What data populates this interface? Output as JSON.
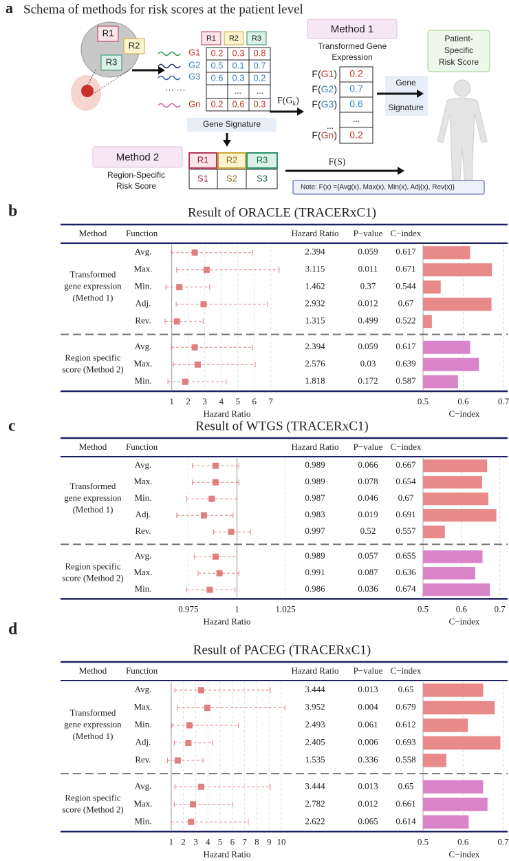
{
  "schema": {
    "label": "a",
    "title": "Schema of methods for risk scores at the patient level",
    "tumor_regions": [
      "R1",
      "R2",
      "R3"
    ],
    "genes": [
      "G1",
      "G2",
      "G3",
      "Gn"
    ],
    "gene_dots": "···  ···",
    "matrix_header": [
      "R1",
      "R2",
      "R3"
    ],
    "matrix": [
      [
        0.2,
        0.3,
        0.8
      ],
      [
        0.5,
        0.1,
        0.7
      ],
      [
        0.6,
        0.3,
        0.2
      ],
      [
        0.2,
        0.6,
        0.3
      ]
    ],
    "dots": "...",
    "transform": [
      "F(G",
      "k",
      ")"
    ],
    "gene_signature_down": "Gene Signature",
    "method1": {
      "title": "Method 1",
      "subtitle": [
        "Transformed Gene",
        "Expression"
      ],
      "func": [
        "F(",
        ")"
      ],
      "values": [
        0.2,
        0.7,
        0.6,
        0.2
      ]
    },
    "arrow_label": [
      "Gene",
      "Signature"
    ],
    "patient": [
      "Patient-",
      "Specific",
      "Risk Score"
    ],
    "method2": {
      "title": "Method 2",
      "subtitle": [
        "Region-Specific",
        "Risk Score"
      ],
      "regions": [
        "R1",
        "R2",
        "R3"
      ],
      "scores": [
        "S1",
        "S2",
        "S3"
      ]
    },
    "aggregate": "F(S)",
    "note": "Note:  F(x) ={Avg(x), Max(x), Min(x), Adj(x), Rev(x)}"
  },
  "chart_data": [
    {
      "type": "forest",
      "label": "b",
      "title": "Result of ORACLE (TRACERxC1)",
      "columns": {
        "method": "Method",
        "function": "Function",
        "hr": "Hazard Ratio",
        "p": "P−value",
        "c": "C−index"
      },
      "hr_axis_label": "Hazard Ratio",
      "c_axis_label": "C−index",
      "ref_line": 1,
      "point_color": "#e07f80",
      "hr_xlim": [
        0.6,
        8.3
      ],
      "hr_xticks": [
        1,
        2,
        3,
        4,
        5,
        6,
        7
      ],
      "c_xlim": [
        0.5,
        0.705
      ],
      "c_xticks": [
        0.5,
        0.6,
        0.7
      ],
      "groups": [
        {
          "name_lines": [
            "Transformed",
            "gene expression",
            "(Method 1)"
          ],
          "color": "#e8898a",
          "rows": [
            {
              "function": "Avg.",
              "hr": 2.394,
              "lower": 0.97,
              "upper": 5.9,
              "p": 0.059,
              "c_index": 0.617
            },
            {
              "function": "Max.",
              "hr": 3.115,
              "lower": 1.3,
              "upper": 7.5,
              "p": 0.011,
              "c_index": 0.671
            },
            {
              "function": "Min.",
              "hr": 1.462,
              "lower": 0.65,
              "upper": 3.3,
              "p": 0.37,
              "c_index": 0.544
            },
            {
              "function": "Adj.",
              "hr": 2.932,
              "lower": 1.27,
              "upper": 6.8,
              "p": 0.012,
              "c_index": 0.67
            },
            {
              "function": "Rev.",
              "hr": 1.315,
              "lower": 0.6,
              "upper": 2.9,
              "p": 0.499,
              "c_index": 0.522
            }
          ]
        },
        {
          "name_lines": [
            "Region specific",
            "score (Method 2)"
          ],
          "color": "#d983c9",
          "rows": [
            {
              "function": "Avg.",
              "hr": 2.394,
              "lower": 0.97,
              "upper": 5.9,
              "p": 0.059,
              "c_index": 0.617
            },
            {
              "function": "Max.",
              "hr": 2.576,
              "lower": 1.1,
              "upper": 6.05,
              "p": 0.03,
              "c_index": 0.639
            },
            {
              "function": "Min.",
              "hr": 1.818,
              "lower": 0.77,
              "upper": 4.3,
              "p": 0.172,
              "c_index": 0.587
            }
          ]
        }
      ]
    },
    {
      "type": "forest",
      "label": "c",
      "title": "Result of WTGS (TRACERxC1)",
      "columns": {
        "method": "Method",
        "function": "Function",
        "hr": "Hazard Ratio",
        "p": "P−value",
        "c": "C−index"
      },
      "hr_axis_label": "Hazard Ratio",
      "c_axis_label": "C−index",
      "ref_line": 1,
      "point_color": "#e07f80",
      "hr_xlim": [
        0.963,
        1.0285
      ],
      "hr_xticks": [
        0.975,
        1,
        1.025
      ],
      "c_xlim": [
        0.5,
        0.715
      ],
      "c_xticks": [
        0.5,
        0.6,
        0.7
      ],
      "groups": [
        {
          "name_lines": [
            "Transformed",
            "gene expression",
            "(Method 1)"
          ],
          "color": "#e8898a",
          "rows": [
            {
              "function": "Avg.",
              "hr": 0.989,
              "lower": 0.977,
              "upper": 1.001,
              "p": 0.066,
              "c_index": 0.667
            },
            {
              "function": "Max.",
              "hr": 0.989,
              "lower": 0.977,
              "upper": 1.001,
              "p": 0.078,
              "c_index": 0.654
            },
            {
              "function": "Min.",
              "hr": 0.987,
              "lower": 0.974,
              "upper": 1.0,
              "p": 0.046,
              "c_index": 0.67
            },
            {
              "function": "Adj.",
              "hr": 0.983,
              "lower": 0.969,
              "upper": 0.998,
              "p": 0.019,
              "c_index": 0.691
            },
            {
              "function": "Rev.",
              "hr": 0.997,
              "lower": 0.988,
              "upper": 1.007,
              "p": 0.52,
              "c_index": 0.557
            }
          ]
        },
        {
          "name_lines": [
            "Region specific",
            "score (Method 2)"
          ],
          "color": "#d983c9",
          "rows": [
            {
              "function": "Avg.",
              "hr": 0.989,
              "lower": 0.978,
              "upper": 1.0,
              "p": 0.057,
              "c_index": 0.655
            },
            {
              "function": "Max.",
              "hr": 0.991,
              "lower": 0.98,
              "upper": 1.001,
              "p": 0.087,
              "c_index": 0.636
            },
            {
              "function": "Min.",
              "hr": 0.986,
              "lower": 0.974,
              "upper": 0.999,
              "p": 0.036,
              "c_index": 0.674
            }
          ]
        }
      ]
    },
    {
      "type": "forest",
      "label": "d",
      "title": "Result of PACEG (TRACERxC1)",
      "columns": {
        "method": "Method",
        "function": "Function",
        "hr": "Hazard Ratio",
        "p": "P−value",
        "c": "C−index"
      },
      "hr_axis_label": "Hazard Ratio",
      "c_axis_label": "C−index",
      "ref_line": 1,
      "point_color": "#e07f80",
      "hr_xlim": [
        0.5,
        10.9
      ],
      "hr_xticks": [
        1,
        2,
        3,
        4,
        5,
        6,
        7,
        8,
        9,
        10
      ],
      "c_xlim": [
        0.5,
        0.706
      ],
      "c_xticks": [
        0.5,
        0.6,
        0.7
      ],
      "groups": [
        {
          "name_lines": [
            "Transformed",
            "gene expression",
            "(Method 1)"
          ],
          "color": "#e8898a",
          "rows": [
            {
              "function": "Avg.",
              "hr": 3.444,
              "lower": 1.3,
              "upper": 9.1,
              "p": 0.013,
              "c_index": 0.65
            },
            {
              "function": "Max.",
              "hr": 3.952,
              "lower": 1.5,
              "upper": 10.3,
              "p": 0.004,
              "c_index": 0.679
            },
            {
              "function": "Min.",
              "hr": 2.493,
              "lower": 1.05,
              "upper": 6.5,
              "p": 0.061,
              "c_index": 0.612
            },
            {
              "function": "Adj.",
              "hr": 2.405,
              "lower": 1.25,
              "upper": 4.4,
              "p": 0.006,
              "c_index": 0.693
            },
            {
              "function": "Rev.",
              "hr": 1.535,
              "lower": 0.7,
              "upper": 3.6,
              "p": 0.336,
              "c_index": 0.558
            }
          ]
        },
        {
          "name_lines": [
            "Region specific",
            "score (Method 2)"
          ],
          "color": "#d983c9",
          "rows": [
            {
              "function": "Avg.",
              "hr": 3.444,
              "lower": 1.3,
              "upper": 9.1,
              "p": 0.013,
              "c_index": 0.65
            },
            {
              "function": "Max.",
              "hr": 2.782,
              "lower": 1.25,
              "upper": 6.0,
              "p": 0.012,
              "c_index": 0.661
            },
            {
              "function": "Min.",
              "hr": 2.622,
              "lower": 1.0,
              "upper": 7.3,
              "p": 0.065,
              "c_index": 0.614
            }
          ]
        }
      ]
    }
  ]
}
